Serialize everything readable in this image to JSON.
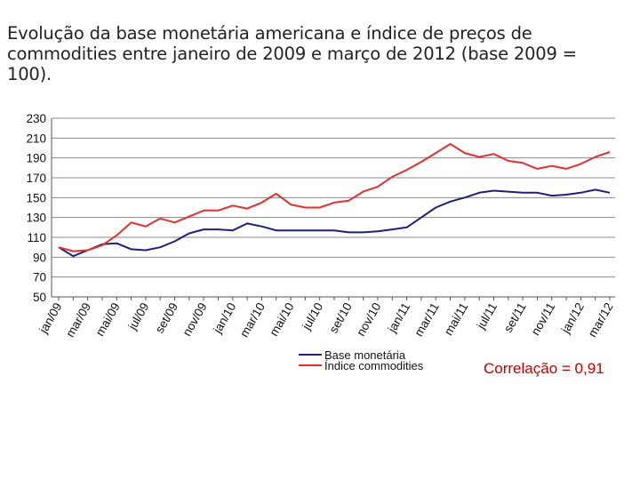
{
  "title": {
    "line1": "Evolução da base monetária americana e índice de preços de",
    "line2": "commodities entre janeiro de 2009 e março de 2012 (base 2009 =",
    "line3": "100)."
  },
  "annotation": {
    "correlation": "Correlação = 0,91"
  },
  "chart_data": {
    "type": "line",
    "title": "Evolução da base monetária americana e índice de preços de commodities entre janeiro de 2009 e março de 2012 (base 2009 = 100).",
    "xlabel": "",
    "ylabel": "",
    "ylim": [
      50,
      230
    ],
    "yticks": [
      50,
      70,
      90,
      110,
      130,
      150,
      170,
      190,
      210,
      230
    ],
    "grid": true,
    "legend_position": "bottom",
    "x_tick_labels": [
      "jan/09",
      "mar/09",
      "mai/09",
      "jul/09",
      "set/09",
      "nov/09",
      "jan/10",
      "mar/10",
      "mai/10",
      "jul/10",
      "set/10",
      "nov/10",
      "jan/11",
      "mar/11",
      "mai/11",
      "jul/11",
      "set/11",
      "nov/11",
      "jan/12",
      "mar/12"
    ],
    "series": [
      {
        "name": "Base monetária",
        "color": "#1f1f7a",
        "values": [
          100,
          91,
          97,
          103,
          104,
          98,
          97,
          100,
          106,
          114,
          118,
          118,
          117,
          124,
          121,
          117,
          117,
          117,
          117,
          117,
          115,
          115,
          116,
          118,
          120,
          130,
          140,
          146,
          150,
          155,
          157,
          156,
          155,
          155,
          152,
          153,
          155,
          158,
          155
        ]
      },
      {
        "name": "Índice commodities",
        "color": "#e03030",
        "values": [
          100,
          96,
          97,
          102,
          112,
          125,
          121,
          129,
          125,
          131,
          137,
          137,
          142,
          139,
          145,
          154,
          143,
          140,
          140,
          145,
          147,
          156,
          161,
          171,
          178,
          186,
          195,
          204,
          195,
          191,
          194,
          187,
          185,
          179,
          182,
          179,
          184,
          191,
          196
        ]
      }
    ]
  }
}
